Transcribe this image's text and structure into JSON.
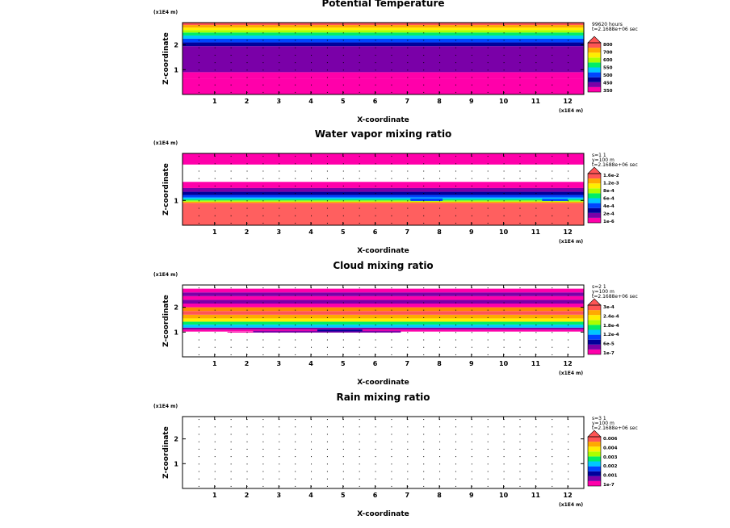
{
  "chart_data": [
    {
      "type": "contour",
      "title": "Potential Temperature",
      "xlabel": "X-coordinate",
      "ylabel": "Z-coordinate",
      "x_units": "(x1E4 m)",
      "y_units": "(x1E4 m)",
      "xlim": [
        0,
        12.5
      ],
      "ylim": [
        0,
        2.9
      ],
      "x_ticks": [
        "1",
        "2",
        "3",
        "4",
        "5",
        "6",
        "7",
        "8",
        "9",
        "10",
        "11",
        "12"
      ],
      "y_ticks": [
        "1",
        "2"
      ],
      "info": [
        "99620 hours",
        "t=2.1688e+06 sec"
      ],
      "colorbar": {
        "labels": [
          "800",
          "700",
          "600",
          "550",
          "500",
          "450",
          "350"
        ],
        "colors": [
          "#ff00aa",
          "#7a00a8",
          "#00009a",
          "#0044ff",
          "#00c8ff",
          "#00ee66",
          "#aaff00",
          "#ffee00",
          "#ffaa00",
          "#ff5555"
        ]
      },
      "bands": [
        {
          "z0": 0,
          "z1": 0.65,
          "color": "#ff00aa"
        },
        {
          "z0": 0.65,
          "z1": 0.9,
          "color": "#ff00aa"
        },
        {
          "z0": 0.9,
          "z1": 1.95,
          "color": "#7a00a8"
        },
        {
          "z0": 1.95,
          "z1": 2.1,
          "color": "#00009a"
        },
        {
          "z0": 2.1,
          "z1": 2.25,
          "color": "#0044ff"
        },
        {
          "z0": 2.25,
          "z1": 2.38,
          "color": "#00c8ff"
        },
        {
          "z0": 2.38,
          "z1": 2.5,
          "color": "#00ee66"
        },
        {
          "z0": 2.5,
          "z1": 2.6,
          "color": "#aaff00"
        },
        {
          "z0": 2.6,
          "z1": 2.7,
          "color": "#ffee00"
        },
        {
          "z0": 2.7,
          "z1": 2.8,
          "color": "#ffaa00"
        },
        {
          "z0": 2.8,
          "z1": 2.9,
          "color": "#ff5555"
        }
      ],
      "features": []
    },
    {
      "type": "contour",
      "title": "Water vapor mixing ratio",
      "xlabel": "X-coordinate",
      "ylabel": "Z-coordinate",
      "x_units": "(x1E4 m)",
      "y_units": "(x1E4 m)",
      "xlim": [
        0,
        12.5
      ],
      "ylim": [
        0,
        2.9
      ],
      "x_ticks": [
        "1",
        "2",
        "3",
        "4",
        "5",
        "6",
        "7",
        "8",
        "9",
        "10",
        "11",
        "12"
      ],
      "y_ticks": [
        "1"
      ],
      "info": [
        "s=1 1",
        "y=100 m",
        "t=2.1688e+06 sec"
      ],
      "colorbar": {
        "labels": [
          "1.6e-2",
          "1.2e-3",
          "8e-4",
          "6e-4",
          "4e-4",
          "2e-4",
          "1e-6"
        ],
        "colors": [
          "#ff00aa",
          "#7a00a8",
          "#00009a",
          "#0044ff",
          "#00c8ff",
          "#00ee66",
          "#aaff00",
          "#ffee00",
          "#ffaa00",
          "#ff5555"
        ]
      },
      "bands": [
        {
          "z0": 0,
          "z1": 0.9,
          "color": "#ff5f5f"
        },
        {
          "z0": 0.9,
          "z1": 0.95,
          "color": "#ffaa00"
        },
        {
          "z0": 0.95,
          "z1": 1.0,
          "color": "#aaff00"
        },
        {
          "z0": 1.0,
          "z1": 1.05,
          "color": "#00ee66"
        },
        {
          "z0": 1.05,
          "z1": 1.12,
          "color": "#00c8ff"
        },
        {
          "z0": 1.12,
          "z1": 1.22,
          "color": "#0044ff"
        },
        {
          "z0": 1.22,
          "z1": 1.35,
          "color": "#00009a"
        },
        {
          "z0": 1.35,
          "z1": 1.5,
          "color": "#7a00a8"
        },
        {
          "z0": 1.5,
          "z1": 1.75,
          "color": "#ff00aa"
        },
        {
          "z0": 2.45,
          "z1": 2.9,
          "color": "#ff00aa"
        }
      ],
      "features": [
        {
          "x0": 7.1,
          "x1": 8.1,
          "z0": 0.98,
          "z1": 1.08,
          "color": "#0044ff"
        },
        {
          "x0": 11.2,
          "x1": 12.0,
          "z0": 0.98,
          "z1": 1.06,
          "color": "#0044ff"
        }
      ]
    },
    {
      "type": "contour",
      "title": "Cloud mixing ratio",
      "xlabel": "X-coordinate",
      "ylabel": "Z-coordinate",
      "x_units": "(x1E4 m)",
      "y_units": "(x1E4 m)",
      "xlim": [
        0,
        12.5
      ],
      "ylim": [
        0,
        2.9
      ],
      "x_ticks": [
        "1",
        "2",
        "3",
        "4",
        "5",
        "6",
        "7",
        "8",
        "9",
        "10",
        "11",
        "12"
      ],
      "y_ticks": [
        "1",
        "2"
      ],
      "info": [
        "s=2 1",
        "y=100 m",
        "t=2.1688e+06 sec"
      ],
      "colorbar": {
        "labels": [
          "3e-4",
          "2.4e-4",
          "1.8e-4",
          "1.2e-4",
          "6e-5",
          "1e-7"
        ],
        "colors": [
          "#ff00aa",
          "#7a00a8",
          "#00009a",
          "#0044ff",
          "#00c8ff",
          "#00ee66",
          "#aaff00",
          "#ffee00",
          "#ffaa00",
          "#ff5555"
        ]
      },
      "bands": [
        {
          "z0": 1.02,
          "z1": 1.1,
          "color": "#ff00aa"
        },
        {
          "z0": 1.1,
          "z1": 1.18,
          "color": "#7a00a8"
        },
        {
          "z0": 1.18,
          "z1": 1.3,
          "color": "#00c8ff"
        },
        {
          "z0": 1.3,
          "z1": 1.42,
          "color": "#00ee66"
        },
        {
          "z0": 1.42,
          "z1": 1.55,
          "color": "#ffee00"
        },
        {
          "z0": 1.55,
          "z1": 1.7,
          "color": "#ffaa00"
        },
        {
          "z0": 1.7,
          "z1": 1.85,
          "color": "#ff5555"
        },
        {
          "z0": 1.85,
          "z1": 2.0,
          "color": "#ff8800"
        },
        {
          "z0": 2.0,
          "z1": 2.15,
          "color": "#ff00aa"
        },
        {
          "z0": 2.15,
          "z1": 2.3,
          "color": "#7a00a8"
        },
        {
          "z0": 2.3,
          "z1": 2.45,
          "color": "#ff00aa"
        },
        {
          "z0": 2.45,
          "z1": 2.6,
          "color": "#7a00a8"
        },
        {
          "z0": 2.6,
          "z1": 2.75,
          "color": "#ff00aa"
        }
      ],
      "features": [
        {
          "x0": 2.2,
          "x1": 6.8,
          "z0": 0.98,
          "z1": 1.05,
          "color": "#7a00a8"
        },
        {
          "x0": 4.2,
          "x1": 5.6,
          "z0": 1.03,
          "z1": 1.1,
          "color": "#00009a"
        },
        {
          "x0": 1.4,
          "x1": 2.2,
          "z0": 0.98,
          "z1": 1.01,
          "color": "#ff00aa"
        }
      ]
    },
    {
      "type": "contour",
      "title": "Rain mixing ratio",
      "xlabel": "X-coordinate",
      "ylabel": "Z-coordinate",
      "x_units": "(x1E4 m)",
      "y_units": "(x1E4 m)",
      "xlim": [
        0,
        12.5
      ],
      "ylim": [
        0,
        2.9
      ],
      "x_ticks": [
        "1",
        "2",
        "3",
        "4",
        "5",
        "6",
        "7",
        "8",
        "9",
        "10",
        "11",
        "12"
      ],
      "y_ticks": [
        "1",
        "2"
      ],
      "info": [
        "s=3 1",
        "y=100 m",
        "t=2.1688e+06 sec"
      ],
      "colorbar": {
        "labels": [
          "0.006",
          "0.004",
          "0.003",
          "0.002",
          "0.001",
          "1e-7"
        ],
        "colors": [
          "#ff00aa",
          "#7a00a8",
          "#00009a",
          "#0044ff",
          "#00c8ff",
          "#00ee66",
          "#aaff00",
          "#ffee00",
          "#ffaa00",
          "#ff5555"
        ]
      },
      "bands": [],
      "features": []
    }
  ]
}
